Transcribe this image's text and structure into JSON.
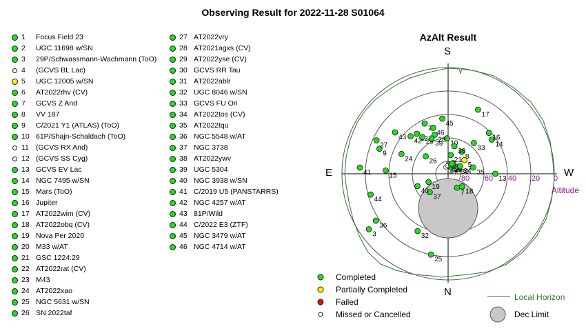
{
  "title": "Observing Result for 2022-11-28 S01064",
  "colors": {
    "completed": "#22dd22",
    "partial": "#f2f200",
    "failed": "#dd1111",
    "missed": "#ffffff",
    "horizon": "#2a7a2a",
    "dec": "#c8c8c8"
  },
  "targets": [
    {
      "num": "1",
      "name": "Focus Field 23",
      "status": "completed"
    },
    {
      "num": "2",
      "name": "UGC 11698 w/SN",
      "status": "completed"
    },
    {
      "num": "3",
      "name": "29P/Schwassmann-Wachmann (ToO)",
      "status": "completed"
    },
    {
      "num": "4",
      "name": "(GCVS BL Lac)",
      "status": "missed"
    },
    {
      "num": "5",
      "name": "UGC 12005 w/SN",
      "status": "partial"
    },
    {
      "num": "6",
      "name": "AT2022rhv (CV)",
      "status": "completed"
    },
    {
      "num": "7",
      "name": "GCVS Z And",
      "status": "completed"
    },
    {
      "num": "8",
      "name": "VV 187",
      "status": "completed"
    },
    {
      "num": "9",
      "name": "C/2021 Y1 (ATLAS) (ToO)",
      "status": "completed"
    },
    {
      "num": "10",
      "name": "61P/Shajn-Schaldach (ToO)",
      "status": "completed"
    },
    {
      "num": "11",
      "name": "(GCVS RX And)",
      "status": "missed"
    },
    {
      "num": "12",
      "name": "(GCVS SS Cyg)",
      "status": "missed"
    },
    {
      "num": "13",
      "name": "GCVS EV Lac",
      "status": "completed"
    },
    {
      "num": "14",
      "name": "NGC 7495 w/SN",
      "status": "completed"
    },
    {
      "num": "15",
      "name": "Mars (ToO)",
      "status": "completed"
    },
    {
      "num": "16",
      "name": "Jupiter",
      "status": "completed"
    },
    {
      "num": "17",
      "name": "AT2022wim (CV)",
      "status": "completed"
    },
    {
      "num": "18",
      "name": "AT2022obq (CV)",
      "status": "completed"
    },
    {
      "num": "19",
      "name": "Nova Per 2020",
      "status": "completed"
    },
    {
      "num": "20",
      "name": "M33 w/AT",
      "status": "completed"
    },
    {
      "num": "21",
      "name": "GSC 1224:29",
      "status": "completed"
    },
    {
      "num": "22",
      "name": "AT2022rat (CV)",
      "status": "completed"
    },
    {
      "num": "23",
      "name": "M43",
      "status": "completed"
    },
    {
      "num": "24",
      "name": "AT2022xao",
      "status": "completed"
    },
    {
      "num": "25",
      "name": "NGC 5631 w/SN",
      "status": "completed"
    },
    {
      "num": "26",
      "name": "SN 2022taf",
      "status": "completed"
    },
    {
      "num": "27",
      "name": "AT2022vry",
      "status": "completed"
    },
    {
      "num": "28",
      "name": "AT2021agxs (CV)",
      "status": "completed"
    },
    {
      "num": "29",
      "name": "AT2022yse (CV)",
      "status": "completed"
    },
    {
      "num": "30",
      "name": "GCVS RR Tau",
      "status": "completed"
    },
    {
      "num": "31",
      "name": "AT2022ablr",
      "status": "completed"
    },
    {
      "num": "32",
      "name": "UGC 8046 w/SN",
      "status": "completed"
    },
    {
      "num": "33",
      "name": "GCVS FU Ori",
      "status": "completed"
    },
    {
      "num": "34",
      "name": "AT2022tos (CV)",
      "status": "completed"
    },
    {
      "num": "35",
      "name": "AT2022tqu",
      "status": "completed"
    },
    {
      "num": "36",
      "name": "NGC 5548 w/AT",
      "status": "completed"
    },
    {
      "num": "37",
      "name": "NGC 3738",
      "status": "completed"
    },
    {
      "num": "38",
      "name": "AT2022ywv",
      "status": "completed"
    },
    {
      "num": "39",
      "name": "UGC 5304",
      "status": "completed"
    },
    {
      "num": "40",
      "name": "NGC 3938 w/SN",
      "status": "completed"
    },
    {
      "num": "41",
      "name": "C/2019 U5 (PANSTARRS)",
      "status": "completed"
    },
    {
      "num": "42",
      "name": "NGC 4257 w/AT",
      "status": "completed"
    },
    {
      "num": "43",
      "name": "81P/Wild",
      "status": "completed"
    },
    {
      "num": "44",
      "name": "C/2022 E3 (ZTF)",
      "status": "completed"
    },
    {
      "num": "45",
      "name": "NGC 3479 w/AT",
      "status": "completed"
    },
    {
      "num": "46",
      "name": "NGC 4714 w/AT",
      "status": "completed"
    }
  ],
  "azalt": {
    "title": "AzAlt Result",
    "directions": {
      "north": "N",
      "south": "S",
      "east": "E",
      "west": "W"
    },
    "altitude_ticks": [
      "80",
      "60",
      "40",
      "20",
      "0"
    ],
    "altitude_label": "Altitude"
  },
  "plot_points": [
    {
      "num": "1",
      "status": "completed",
      "az": 185,
      "alt": 82
    },
    {
      "num": "2",
      "status": "completed",
      "az": 205,
      "alt": 84
    },
    {
      "num": "3",
      "status": "completed",
      "az": 55,
      "alt": 8
    },
    {
      "num": "4",
      "status": "missed",
      "az": 160,
      "alt": 84
    },
    {
      "num": "5",
      "status": "partial",
      "az": 230,
      "alt": 72
    },
    {
      "num": "6",
      "status": "completed",
      "az": 205,
      "alt": 80
    },
    {
      "num": "7",
      "status": "completed",
      "az": 327,
      "alt": 76
    },
    {
      "num": "8",
      "status": "completed",
      "az": 212,
      "alt": 68
    },
    {
      "num": "9",
      "status": "completed",
      "az": 110,
      "alt": 28
    },
    {
      "num": "10",
      "status": "completed",
      "az": 178,
      "alt": 60
    },
    {
      "num": "11",
      "status": "missed",
      "az": 175,
      "alt": 83
    },
    {
      "num": "12",
      "status": "missed",
      "az": 197,
      "alt": 82
    },
    {
      "num": "13",
      "status": "completed",
      "az": 270,
      "alt": 50
    },
    {
      "num": "14",
      "status": "completed",
      "az": 232,
      "alt": 43
    },
    {
      "num": "15",
      "status": "completed",
      "az": 93,
      "alt": 37
    },
    {
      "num": "16",
      "status": "completed",
      "az": 225,
      "alt": 41
    },
    {
      "num": "17",
      "status": "completed",
      "az": 205,
      "alt": 30
    },
    {
      "num": "18",
      "status": "completed",
      "az": 312,
      "alt": 74
    },
    {
      "num": "19",
      "status": "completed",
      "az": 67,
      "alt": 72
    },
    {
      "num": "20",
      "status": "completed",
      "az": 197,
      "alt": 82
    },
    {
      "num": "21",
      "status": "completed",
      "az": 188,
      "alt": 74
    },
    {
      "num": "22",
      "status": "completed",
      "az": 142,
      "alt": 47
    },
    {
      "num": "23",
      "status": "completed",
      "az": 155,
      "alt": 43
    },
    {
      "num": "24",
      "status": "completed",
      "az": 113,
      "alt": 47
    },
    {
      "num": "25",
      "status": "completed",
      "az": 12,
      "alt": 20
    },
    {
      "num": "26",
      "status": "completed",
      "az": 128,
      "alt": 66
    },
    {
      "num": "27",
      "status": "completed",
      "az": 115,
      "alt": 23
    },
    {
      "num": "28",
      "status": "completed",
      "az": 161,
      "alt": 55
    },
    {
      "num": "29",
      "status": "completed",
      "az": 145,
      "alt": 52
    },
    {
      "num": "30",
      "status": "completed",
      "az": 234,
      "alt": 80
    },
    {
      "num": "31",
      "status": "completed",
      "az": 200,
      "alt": 81
    },
    {
      "num": "32",
      "status": "completed",
      "az": 28,
      "alt": 35
    },
    {
      "num": "33",
      "status": "completed",
      "az": 220,
      "alt": 56
    },
    {
      "num": "34",
      "status": "completed",
      "az": 238,
      "alt": 78
    },
    {
      "num": "35",
      "status": "completed",
      "az": 256,
      "alt": 68
    },
    {
      "num": "36",
      "status": "completed",
      "az": 57,
      "alt": 17
    },
    {
      "num": "37",
      "status": "completed",
      "az": 45,
      "alt": 68
    },
    {
      "num": "38",
      "status": "completed",
      "az": 193,
      "alt": 66
    },
    {
      "num": "39",
      "status": "completed",
      "az": 155,
      "alt": 57
    },
    {
      "num": "40",
      "status": "completed",
      "az": 68,
      "alt": 62
    },
    {
      "num": "41",
      "status": "completed",
      "az": 94,
      "alt": 15
    },
    {
      "num": "42",
      "status": "completed",
      "az": 135,
      "alt": 45
    },
    {
      "num": "43",
      "status": "completed",
      "az": 128,
      "alt": 33
    },
    {
      "num": "44",
      "status": "completed",
      "az": 75,
      "alt": 22
    },
    {
      "num": "45",
      "status": "completed",
      "az": 174,
      "alt": 43
    },
    {
      "num": "46",
      "status": "completed",
      "az": 162,
      "alt": 49
    }
  ],
  "legend": {
    "completed": "Completed",
    "partial": "Partially Completed",
    "failed": "Failed",
    "missed": "Missed or Cancelled",
    "horizon": "Local Horizon",
    "dec": "Dec Limit"
  }
}
